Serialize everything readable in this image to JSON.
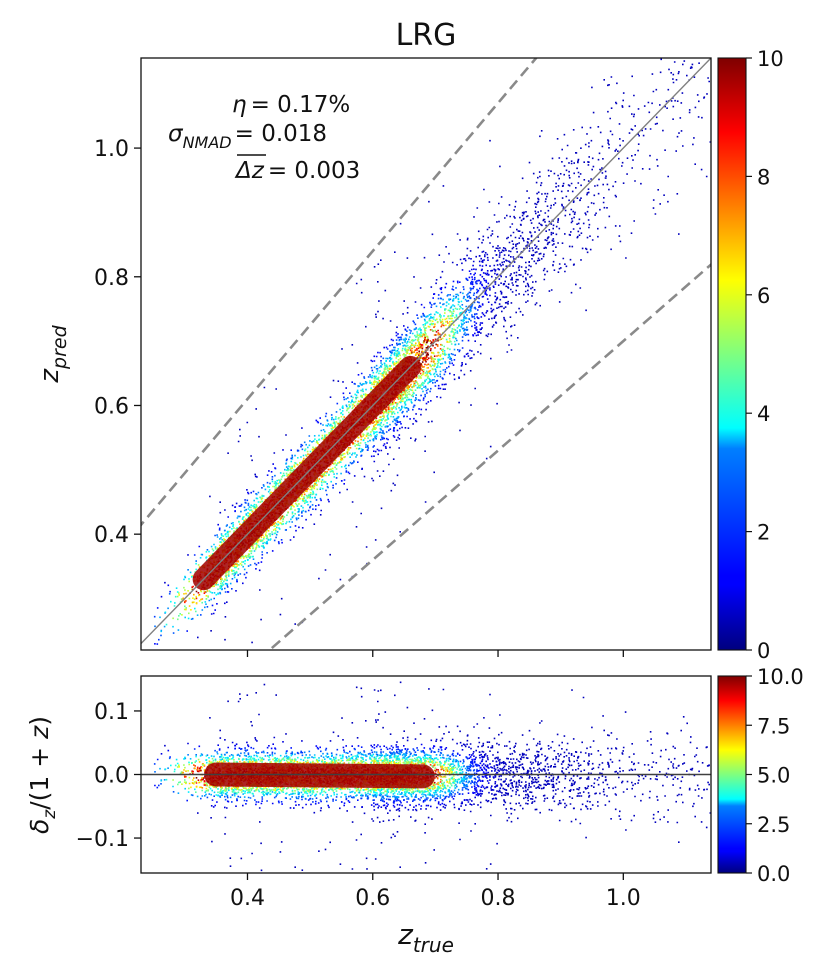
{
  "chart_data": [
    {
      "type": "scatter",
      "title": "LRG",
      "xlabel": "z_true",
      "ylabel_main": "z",
      "ylabel_sub": "pred",
      "xlim": [
        0.23,
        1.14
      ],
      "ylim": [
        0.22,
        1.14
      ],
      "xticks": [
        "0.4",
        "0.6",
        "0.8",
        "1.0"
      ],
      "yticks": [
        "0.4",
        "0.6",
        "0.8",
        "1.0"
      ],
      "reference_lines": [
        {
          "kind": "identity",
          "style": "solid",
          "color": "#808080"
        },
        {
          "kind": "outlier_bound_upper",
          "offset": 0.15,
          "style": "dashed",
          "color": "#8a8a8a"
        },
        {
          "kind": "outlier_bound_lower",
          "offset": -0.15,
          "style": "dashed",
          "color": "#8a8a8a"
        }
      ],
      "annotations": [
        {
          "symbol": "η",
          "sub": "",
          "value": "= 0.17%"
        },
        {
          "symbol": "σ",
          "sub": "NMAD",
          "value": "= 0.018"
        },
        {
          "symbol": "Δz",
          "sub": "",
          "value": "= 0.003",
          "overline": true
        }
      ],
      "density_ridge": {
        "x_start": 0.33,
        "x_end": 0.68,
        "x_sparse_end": 1.14
      },
      "colorbar": {
        "range": [
          0,
          10
        ],
        "ticks": [
          "0",
          "2",
          "4",
          "6",
          "8",
          "10"
        ]
      }
    },
    {
      "type": "scatter",
      "xlabel": "z_true",
      "ylabel": "δ_z/(1 + z)",
      "ylabel_parts": {
        "delta": "δ",
        "sub": "z",
        "rest": "/(1 + ",
        "z": "z",
        "close": ")"
      },
      "xlim": [
        0.23,
        1.14
      ],
      "ylim": [
        -0.155,
        0.155
      ],
      "xticks": [
        "0.4",
        "0.6",
        "0.8",
        "1.0"
      ],
      "yticks": [
        "0.1",
        "0.0",
        "−0.1"
      ],
      "reference_lines": [
        {
          "kind": "zero",
          "style": "solid",
          "color": "#404040"
        }
      ],
      "colorbar": {
        "range": [
          0,
          10
        ],
        "ticks": [
          "0.0",
          "2.5",
          "5.0",
          "7.5",
          "10.0"
        ]
      }
    }
  ],
  "colormap": {
    "name": "jet",
    "stops": [
      "#00007f",
      "#0000ff",
      "#007fff",
      "#00ffff",
      "#7fff7f",
      "#ffff00",
      "#ff7f00",
      "#ff0000",
      "#7f0000"
    ]
  }
}
